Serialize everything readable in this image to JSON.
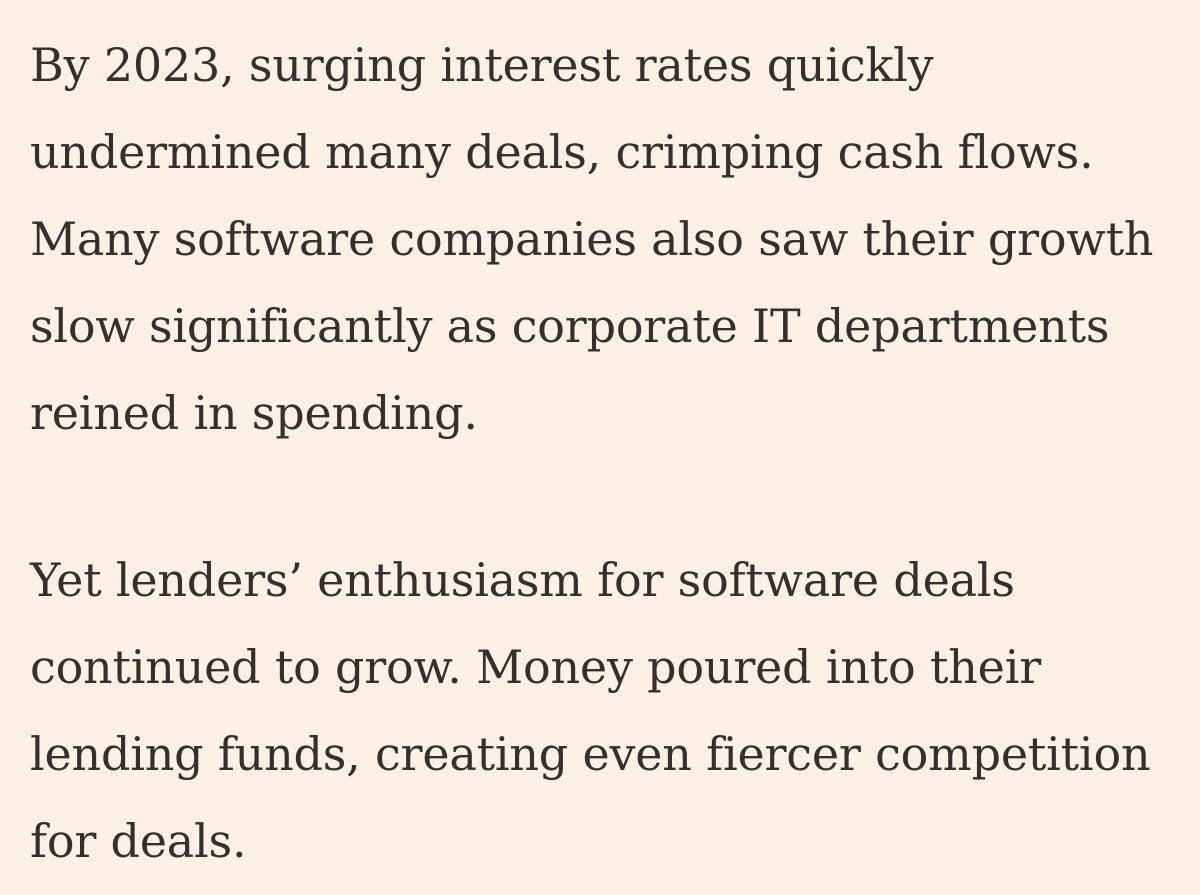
{
  "article": {
    "paragraphs": [
      {
        "lines": [
          "By 2023, surging interest rates quickly",
          "undermined many deals, crimping cash flows.",
          "Many software companies also saw their growth",
          "slow significantly as corporate IT departments",
          "reined in spending."
        ]
      },
      {
        "lines": [
          "Yet lenders’ enthusiasm for software deals",
          "continued to grow. Money poured into their",
          "lending funds, creating even fiercer competition",
          "for deals."
        ]
      }
    ]
  }
}
